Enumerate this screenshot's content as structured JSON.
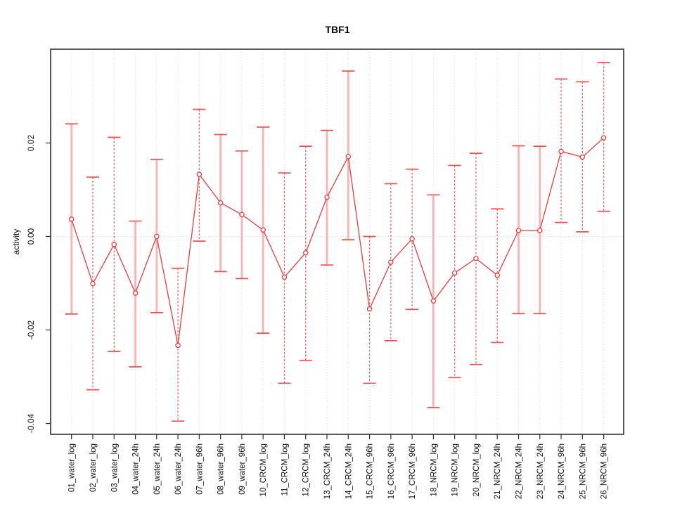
{
  "chart_data": {
    "type": "line",
    "title": "TBF1",
    "ylabel": "activity",
    "xlabel": "",
    "legend_position": "none",
    "grid": "vertical dotted gridline at every category; horizontal dotted gridline at y=0",
    "marker": "open-circle",
    "error_bars": true,
    "ylim": [
      -0.0425,
      0.0405
    ],
    "yticks": [
      0.02,
      0.0,
      -0.02,
      -0.04
    ],
    "ytick_labels": [
      "0.02",
      "0.00",
      "-0.02",
      "-0.04"
    ],
    "categories": [
      "01_water_log",
      "02_water_log",
      "03_water_log",
      "04_water_24h",
      "05_water_24h",
      "06_water_24h",
      "07_water_96h",
      "08_water_96h",
      "09_water_96h",
      "10_CRCM_log",
      "11_CRCM_log",
      "12_CRCM_log",
      "13_CRCM_24h",
      "14_CRCM_24h",
      "15_CRCM_96h",
      "16_CRCM_96h",
      "17_CRCM_96h",
      "18_NRCM_log",
      "19_NRCM_log",
      "20_NRCM_log",
      "21_NRCM_24h",
      "22_NRCM_24h",
      "23_NRCM_24h",
      "24_NRCM_96h",
      "25_NRCM_96h",
      "26_NRCM_96h"
    ],
    "series": [
      {
        "name": "activity",
        "values": [
          0.0037,
          -0.0101,
          -0.0017,
          -0.0121,
          0.0,
          -0.0233,
          0.0133,
          0.0072,
          0.0047,
          0.0014,
          -0.0087,
          -0.0035,
          0.0084,
          0.0171,
          -0.0155,
          -0.0055,
          -0.0005,
          -0.0138,
          -0.0078,
          -0.0047,
          -0.0083,
          0.0013,
          0.0013,
          0.0182,
          0.017,
          0.0211
        ],
        "upper": [
          0.0241,
          0.0127,
          0.0212,
          0.0033,
          0.0165,
          -0.0068,
          0.0272,
          0.0218,
          0.0183,
          0.0234,
          0.0136,
          0.0193,
          0.0227,
          0.0354,
          0.0,
          0.0113,
          0.0144,
          0.0089,
          0.0152,
          0.0178,
          0.0059,
          0.0194,
          0.0193,
          0.0337,
          0.0331,
          0.0372
        ],
        "lower": [
          -0.0166,
          -0.0328,
          -0.0246,
          -0.0279,
          -0.0163,
          -0.0395,
          -0.001,
          -0.0075,
          -0.009,
          -0.0207,
          -0.0314,
          -0.0265,
          -0.0061,
          -0.0007,
          -0.0314,
          -0.0223,
          -0.0156,
          -0.0366,
          -0.0302,
          -0.0274,
          -0.0227,
          -0.0165,
          -0.0165,
          0.003,
          0.001,
          0.0054
        ],
        "error_bar_style": [
          "light",
          "dashed",
          "dashed",
          "light",
          "light",
          "dashed",
          "dashed",
          "light",
          "light",
          "light",
          "dashed",
          "dashed",
          "light",
          "light",
          "dashed",
          "dashed",
          "dashed",
          "light",
          "dashed",
          "dashed",
          "dashed",
          "light",
          "light",
          "dashed",
          "dashed",
          "dashed"
        ]
      }
    ],
    "colors": {
      "line": "#ef3b3b",
      "marker_stroke": "#ef3b3b",
      "error_bar_light": "#ffb0b0",
      "error_bar_dashed": "#f25f5f",
      "cap": "#f05050",
      "gridline": "#d6d6d6",
      "frame": "#5a5a5a",
      "tick": "#2a2a2a",
      "text": "#111111"
    }
  }
}
